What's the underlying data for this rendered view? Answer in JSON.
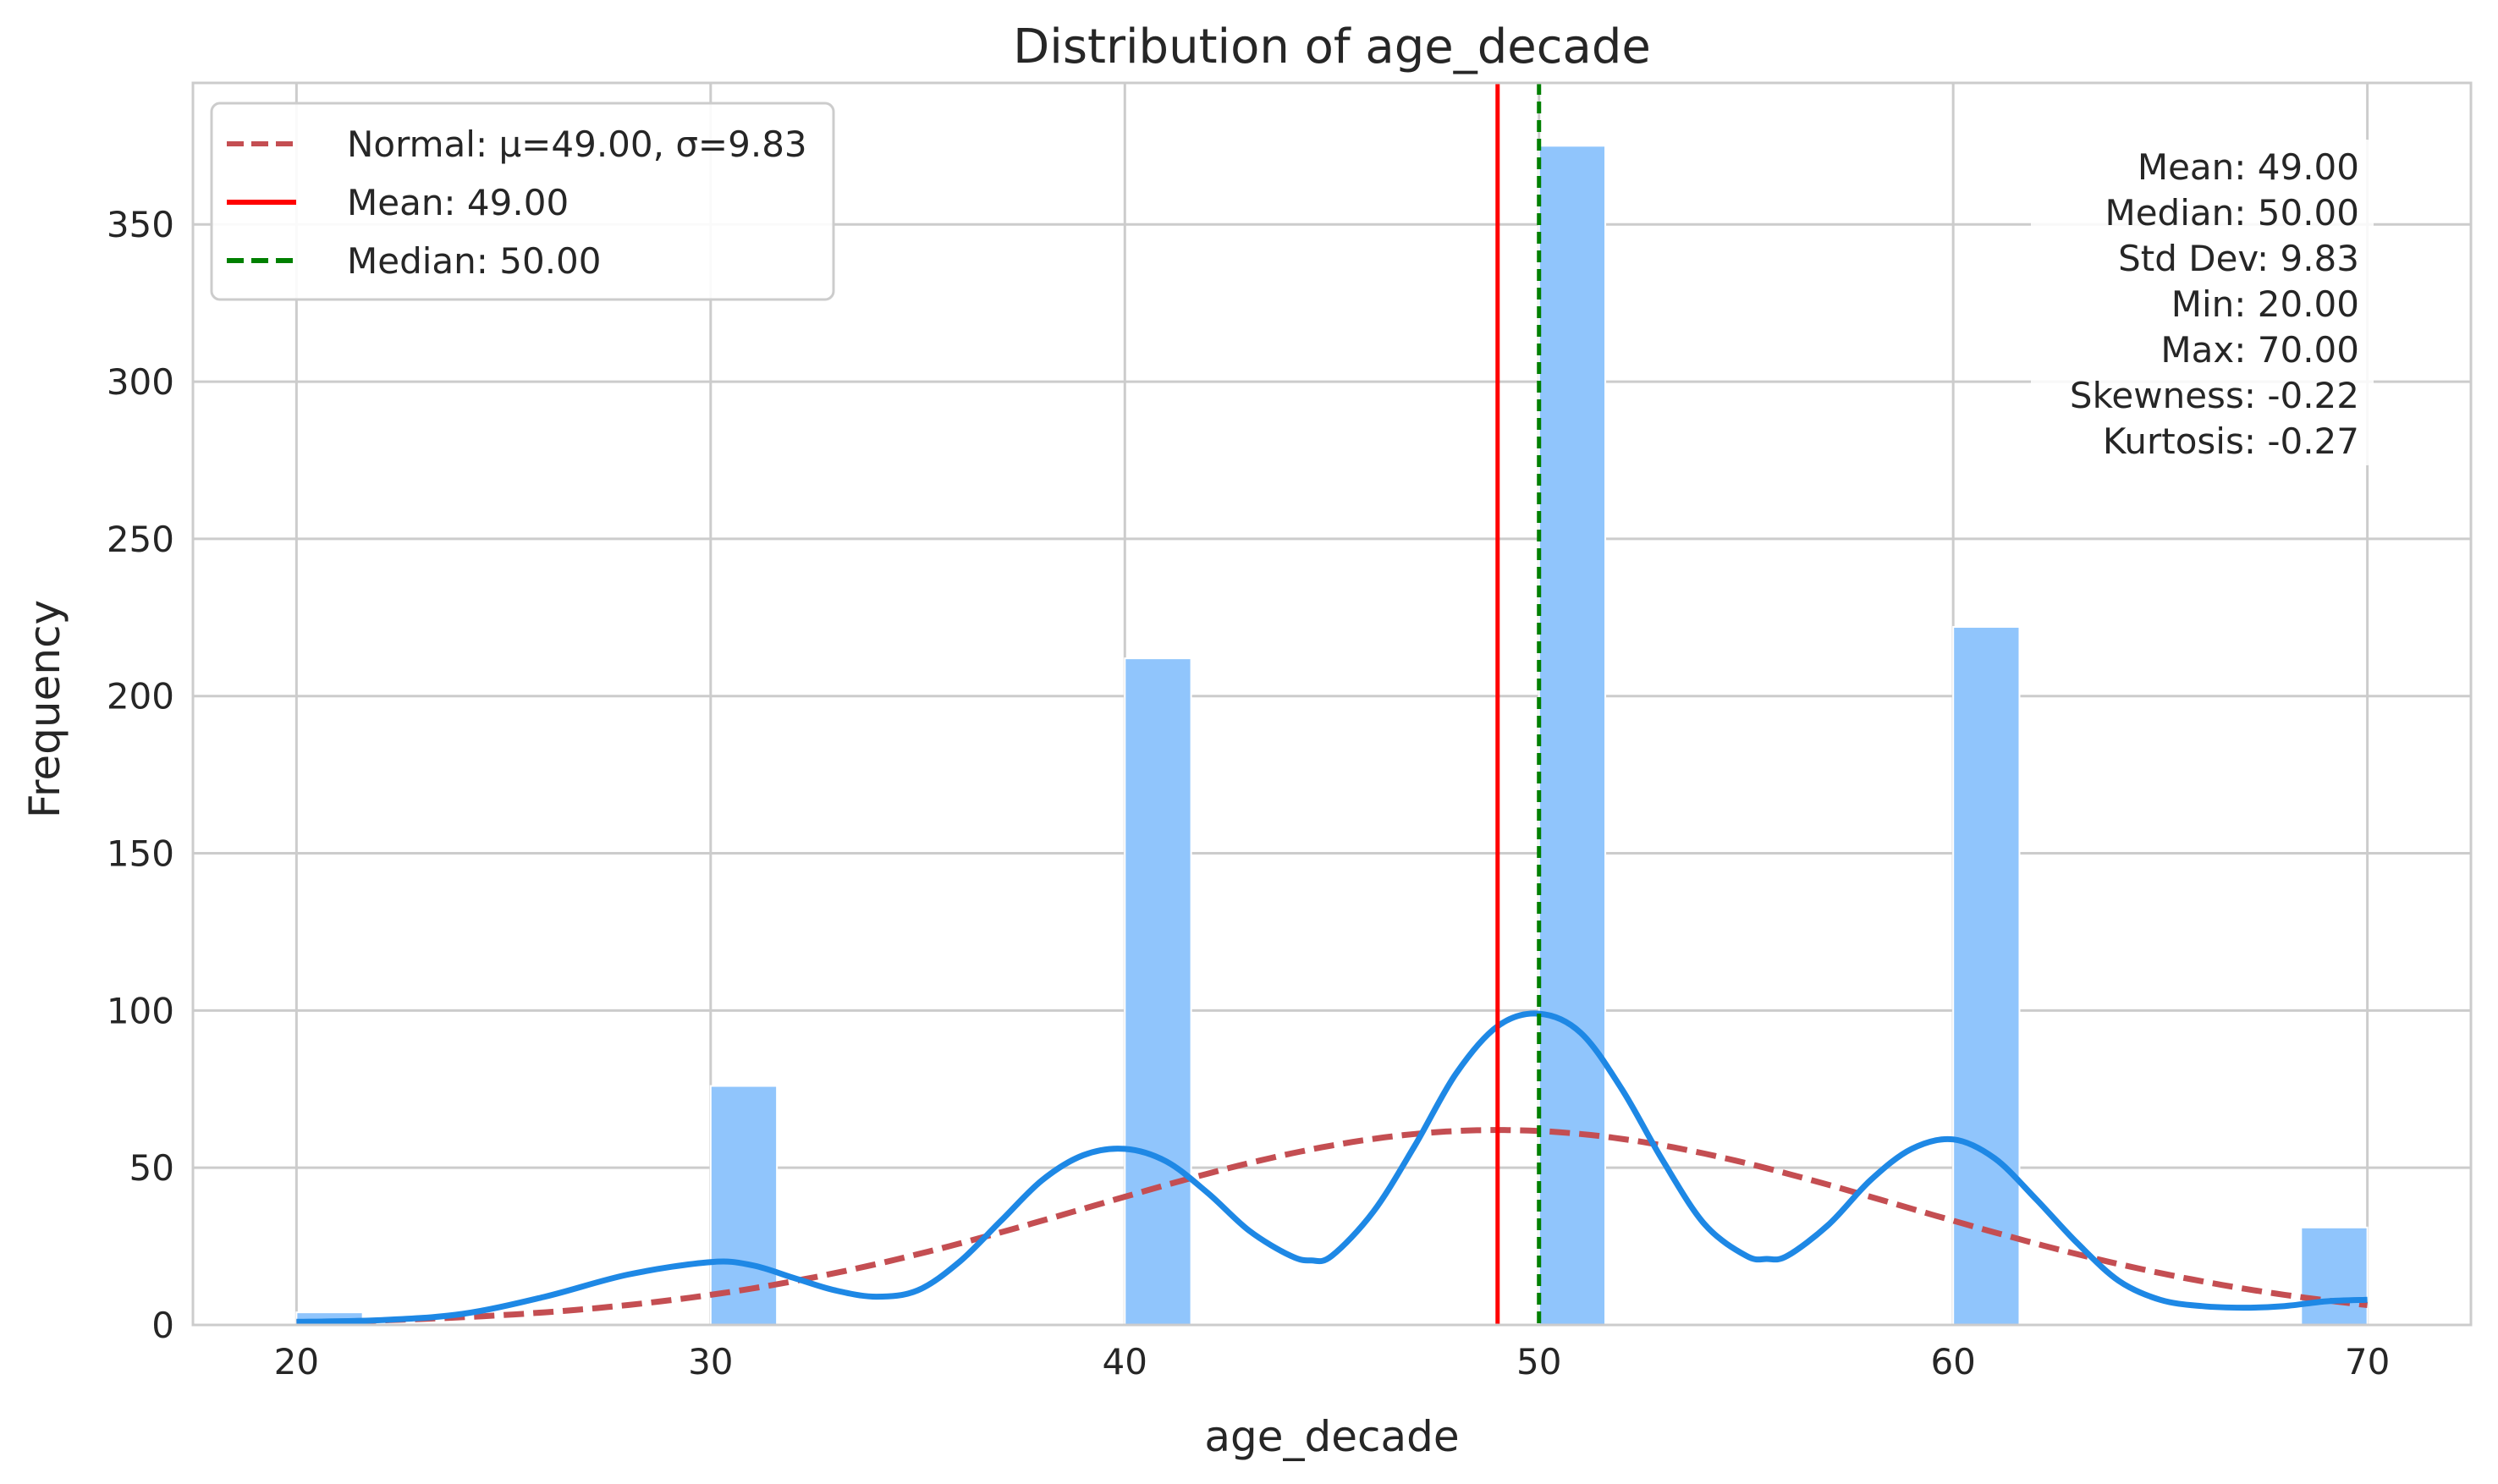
{
  "chart_data": {
    "type": "bar",
    "title": "Distribution of age_decade",
    "xlabel": "age_decade",
    "ylabel": "Frequency",
    "xlim": [
      17.5,
      72.5
    ],
    "ylim": [
      0,
      395
    ],
    "x_ticks": [
      20,
      30,
      40,
      50,
      60,
      70
    ],
    "y_ticks": [
      0,
      50,
      100,
      150,
      200,
      250,
      300,
      350
    ],
    "grid": true,
    "bin_width": 1.6,
    "bins": [
      {
        "start": 20.0,
        "count": 4
      },
      {
        "start": 30.0,
        "count": 76
      },
      {
        "start": 40.0,
        "count": 212
      },
      {
        "start": 50.0,
        "count": 375
      },
      {
        "start": 60.0,
        "count": 222
      },
      {
        "start": 68.4,
        "count": 31
      }
    ],
    "kde": {
      "x": [
        20,
        22,
        24,
        26,
        28,
        30,
        31,
        32,
        33,
        34,
        35,
        36,
        37,
        38,
        39,
        40,
        41,
        42,
        43,
        44,
        44.5,
        45,
        46,
        47,
        48,
        49,
        50,
        51,
        52,
        53,
        54,
        55,
        55.5,
        56,
        57,
        58,
        59,
        60,
        61,
        62,
        63,
        64,
        65,
        66,
        67,
        68,
        69,
        70
      ],
      "y": [
        1,
        1.5,
        3.5,
        9,
        16,
        20,
        19,
        15,
        11,
        9,
        11,
        20,
        33,
        46,
        54,
        56,
        52,
        42,
        30,
        22,
        20.5,
        22,
        36,
        57,
        80,
        95,
        99,
        93,
        75,
        52,
        32,
        22,
        21,
        22,
        32,
        46,
        56,
        59,
        53,
        40,
        26,
        14,
        8,
        6,
        5.5,
        6,
        7.5,
        8
      ]
    },
    "normal_fit": {
      "mu": 49.0,
      "sigma": 9.83,
      "peak": 62
    },
    "mean": 49.0,
    "median": 50.0,
    "legend": {
      "position": "top-left",
      "entries": [
        {
          "label": "Normal: μ=49.00, σ=9.83",
          "color": "#c44e52",
          "style": "dashed"
        },
        {
          "label": "Mean: 49.00",
          "color": "#ff0000",
          "style": "solid"
        },
        {
          "label": "Median: 50.00",
          "color": "#008000",
          "style": "dashed"
        }
      ]
    },
    "stats_box": [
      "Mean: 49.00",
      "Median: 50.00",
      "Std Dev: 9.83",
      "Min: 20.00",
      "Max: 70.00",
      "Skewness: -0.22",
      "Kurtosis: -0.27"
    ],
    "colors": {
      "bar": "#90c5fc",
      "kde": "#1e88e5",
      "normal": "#c44e52",
      "mean": "#ff0000",
      "median": "#008000",
      "grid": "#cccccc",
      "axes": "#cccccc"
    }
  }
}
